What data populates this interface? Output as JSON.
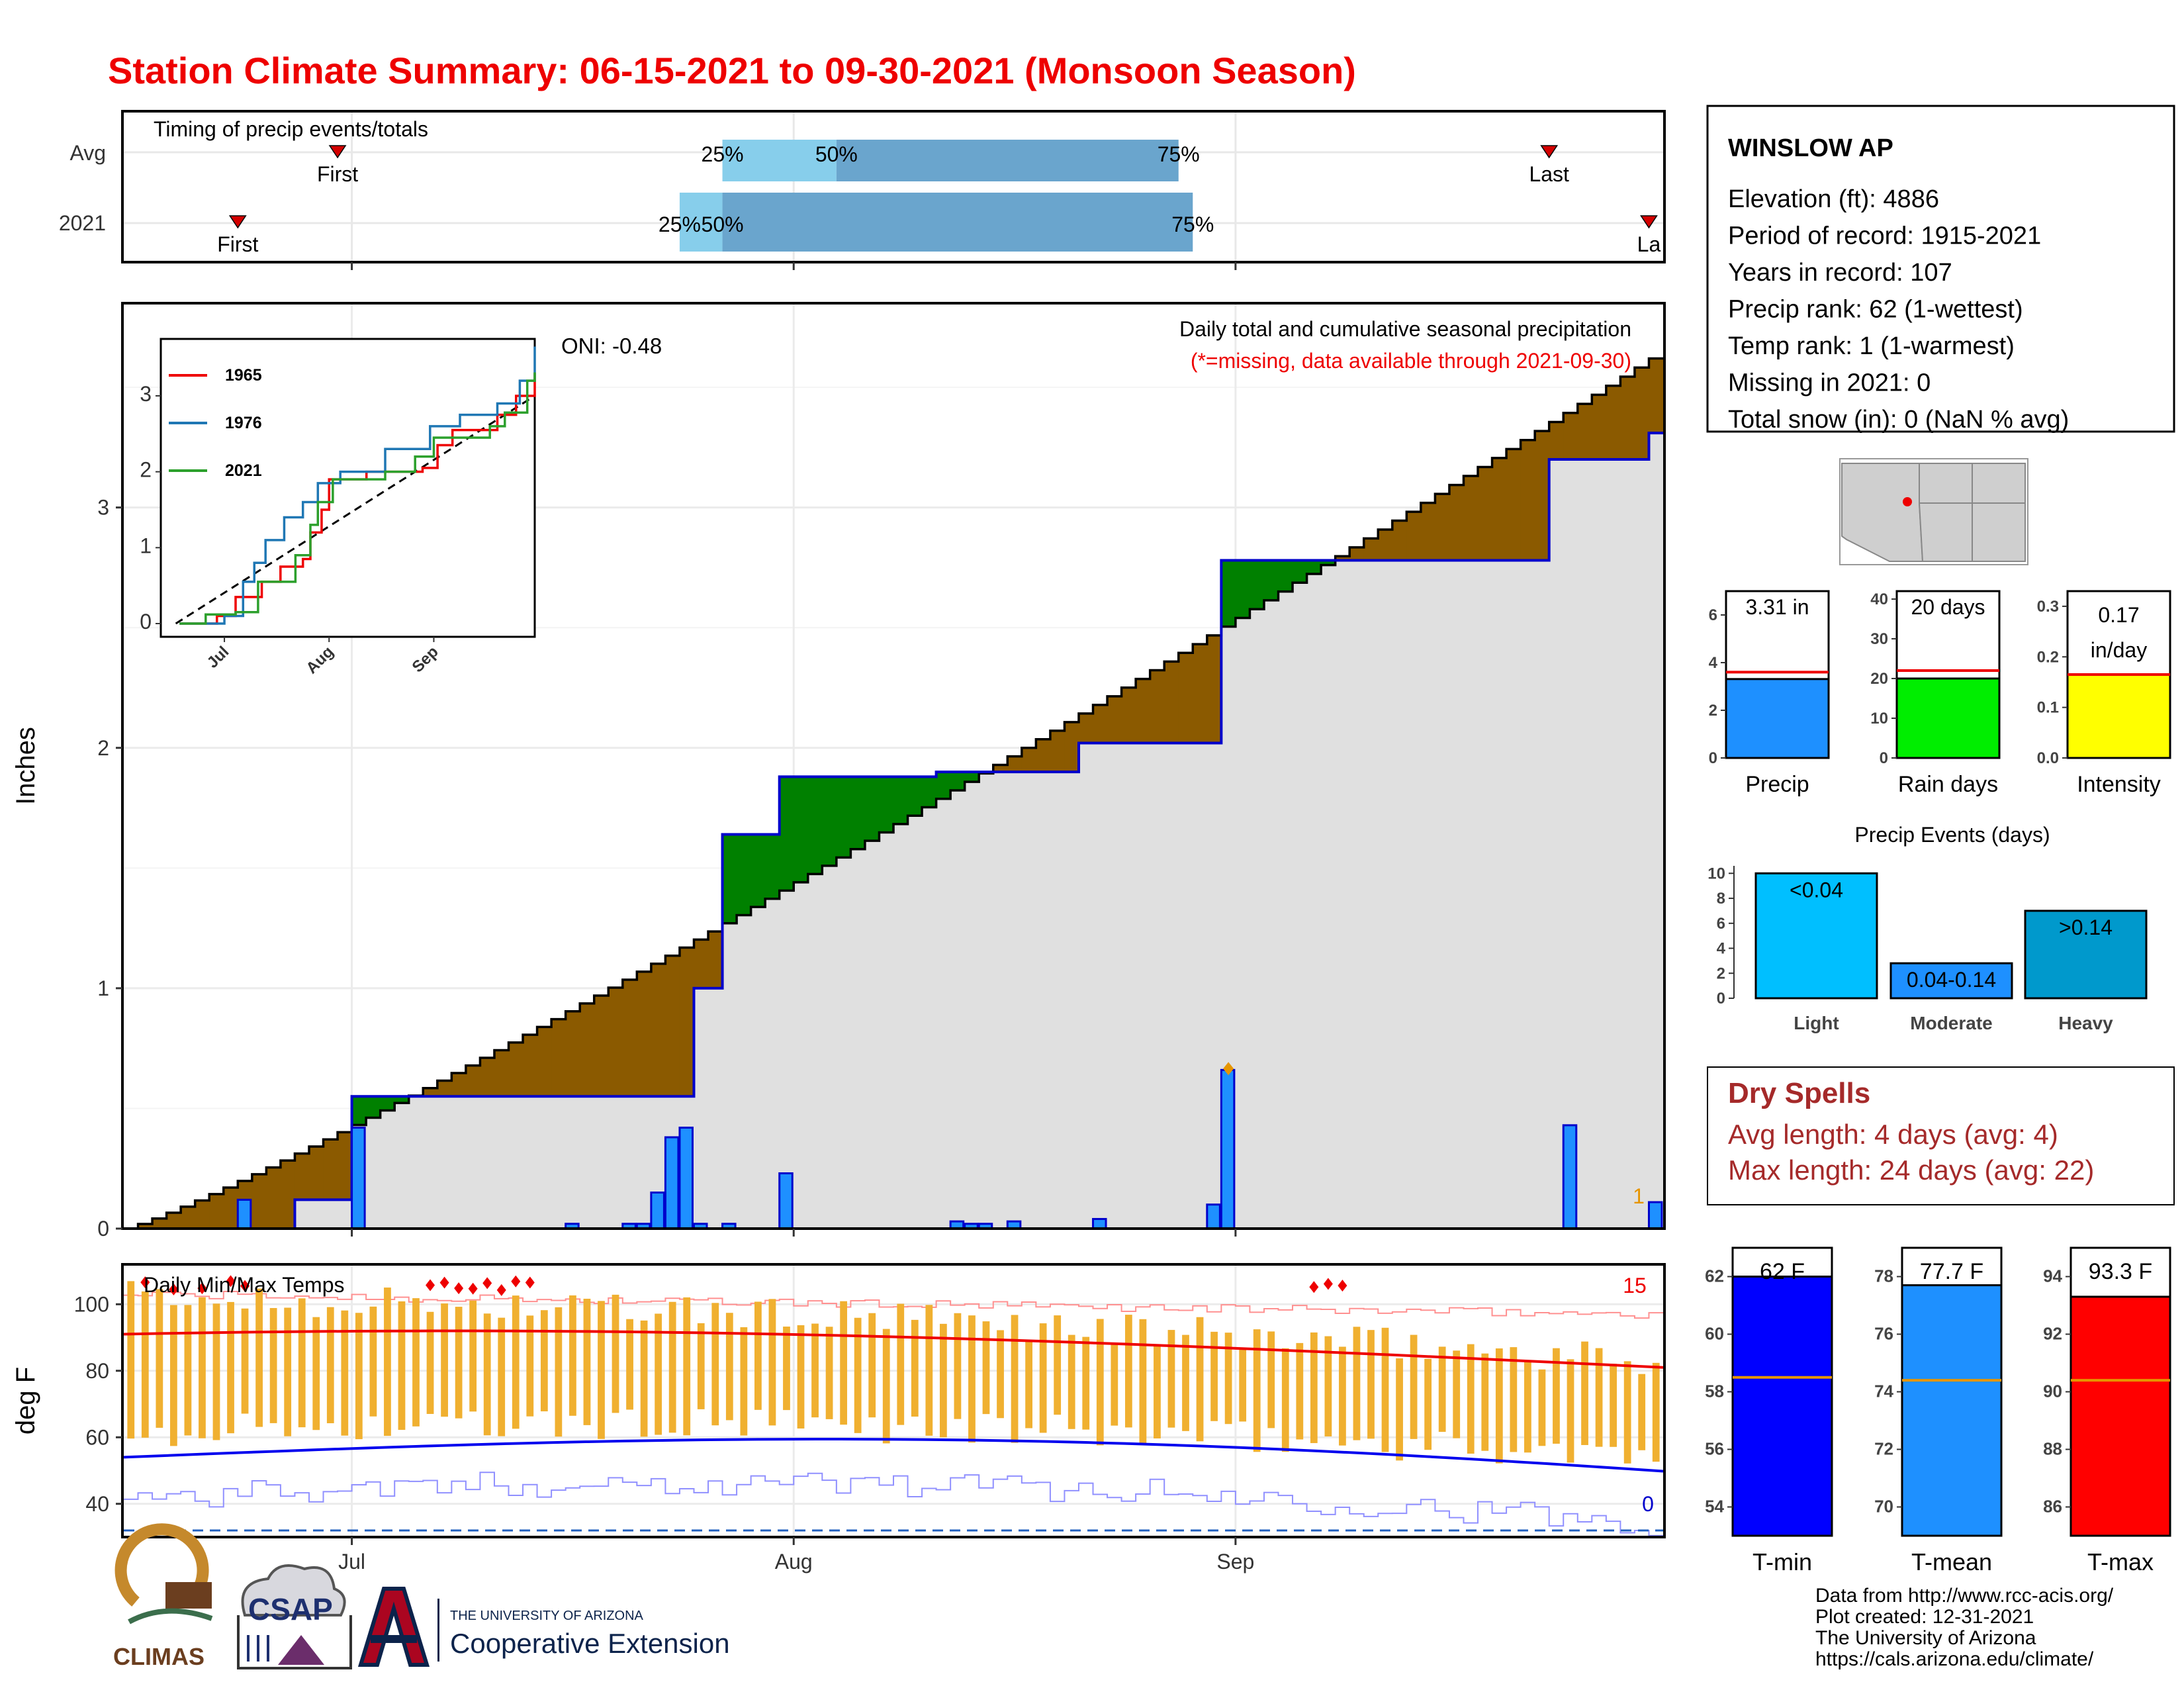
{
  "title": "Station Climate Summary: 06-15-2021 to 09-30-2021 (Monsoon Season)",
  "colors": {
    "title": "#ee0000",
    "above_avg": "#8B5A00",
    "below_avg": "#008000",
    "avg_fill": "#e0e0e0",
    "line_2021": "#0000cc",
    "bar_precip": "#1e90ff",
    "temp_bar": "#f0b030",
    "tmax_avg": "#ee0000",
    "tmin_avg": "#0000ee",
    "light_blue": "#87ceeb",
    "mid_blue": "#6aa5cd"
  },
  "timing": {
    "title": "Timing of precip events/totals",
    "rows": [
      "Avg",
      "2021"
    ],
    "avg": {
      "first_label": "First",
      "first_date": "2021-06-30",
      "last_label": "Last",
      "last_date": "2021-09-23",
      "p25_label": "25%",
      "p25_date": "2021-07-27",
      "p50_label": "50%",
      "p50_date": "2021-08-04",
      "p75_label": "75%",
      "p75_date": "2021-08-28"
    },
    "y2021": {
      "first_label": "First",
      "first_date": "2021-06-23",
      "last_label": "La",
      "last_date": "2021-09-30",
      "p25_label": "25%",
      "p25_date": "2021-07-24",
      "p50_label": "50%",
      "p50_date": "2021-07-27",
      "p75_label": "75%",
      "p75_date": "2021-08-29"
    }
  },
  "precip_panel": {
    "ylabel": "Inches",
    "subtitle": "Daily total and cumulative seasonal precipitation",
    "missing_note": "(*=missing, data available through 2021-09-30)",
    "oni": "ONI: -0.48",
    "corner_count": "1"
  },
  "inset": {
    "legend": [
      "1965",
      "1976",
      "2021"
    ],
    "legend_colors": [
      "#ee0000",
      "#1f77b4",
      "#2ca02c"
    ],
    "x_ticks": [
      "Jul",
      "Aug",
      "Sep"
    ],
    "y_ticks": [
      "0",
      "1",
      "2",
      "3"
    ]
  },
  "temp_panel": {
    "title": "Daily Min/Max Temps",
    "ylabel": "deg F",
    "y_ticks": [
      "40",
      "60",
      "80",
      "100"
    ],
    "record_high_count": "15",
    "record_low_count": "0"
  },
  "x_ticks": [
    "Jul",
    "Aug",
    "Sep"
  ],
  "station": {
    "name": "WINSLOW AP",
    "lines": [
      "Elevation (ft): 4886",
      "Period of record: 1915-2021",
      "Years in record: 107",
      "Precip rank: 62 (1-wettest)",
      "Temp rank: 1 (1-warmest)",
      "Missing in 2021: 0",
      "Total snow (in): 0 (NaN % avg)"
    ]
  },
  "summary_bars": [
    {
      "label": "Precip",
      "value_text": "3.31 in",
      "value": 3.31,
      "avg": 3.6,
      "ymax": 7,
      "ticks": [
        "0",
        "2",
        "4",
        "6"
      ],
      "tick_vals": [
        0,
        2,
        4,
        6
      ],
      "color": "#1e90ff"
    },
    {
      "label": "Rain days",
      "value_text": "20 days",
      "value": 20,
      "avg": 22,
      "ymax": 42,
      "ticks": [
        "0",
        "10",
        "20",
        "30",
        "40"
      ],
      "tick_vals": [
        0,
        10,
        20,
        30,
        40
      ],
      "color": "#00ee00"
    },
    {
      "label": "Intensity",
      "value_text": "0.17 in/day",
      "value_line1": "0.17",
      "value_line2": "in/day",
      "value": 0.165,
      "avg": 0.165,
      "ymax": 0.33,
      "ticks": [
        "0.0",
        "0.1",
        "0.2",
        "0.3"
      ],
      "tick_vals": [
        0,
        0.1,
        0.2,
        0.3
      ],
      "color": "#ffff00"
    }
  ],
  "events": {
    "title": "Precip Events (days)",
    "categories": [
      "Light",
      "Moderate",
      "Heavy"
    ],
    "bar_labels": [
      "<0.04",
      "0.04-0.14",
      ">0.14"
    ],
    "values": [
      10,
      2.8,
      7
    ],
    "colors": [
      "#00bfff",
      "#1e90ff",
      "#0099cc"
    ],
    "ticks": [
      "0",
      "2",
      "4",
      "6",
      "8",
      "10"
    ]
  },
  "dry_spells": {
    "title": "Dry Spells",
    "avg_line": "Avg length: 4 days (avg: 4)",
    "max_line": "Max length: 24 days (avg: 22)"
  },
  "temp_bars": [
    {
      "label": "T-min",
      "value_text": "62 F",
      "value": 62.0,
      "avg": 58.5,
      "ymin": 53,
      "ymax": 63,
      "ticks": [
        "54",
        "56",
        "58",
        "60",
        "62"
      ],
      "tick_vals": [
        54,
        56,
        58,
        60,
        62
      ],
      "color": "#0000ff"
    },
    {
      "label": "T-mean",
      "value_text": "77.7 F",
      "value": 77.7,
      "avg": 74.4,
      "ymin": 69,
      "ymax": 79,
      "ticks": [
        "70",
        "72",
        "74",
        "76",
        "78"
      ],
      "tick_vals": [
        70,
        72,
        74,
        76,
        78
      ],
      "color": "#1e90ff"
    },
    {
      "label": "T-max",
      "value_text": "93.3 F",
      "value": 93.3,
      "avg": 90.4,
      "ymin": 85,
      "ymax": 95,
      "ticks": [
        "86",
        "88",
        "90",
        "92",
        "94"
      ],
      "tick_vals": [
        86,
        88,
        90,
        92,
        94
      ],
      "color": "#ff0000"
    }
  ],
  "footer": {
    "lines": [
      "Data from http://www.rcc-acis.org/",
      "Plot created: 12-31-2021",
      "The University of Arizona",
      "https://cals.arizona.edu/climate/"
    ],
    "logo1": "CLIMAS",
    "logo2": "CSAP",
    "logo3_small": "THE UNIVERSITY OF ARIZONA",
    "logo3_big": "Cooperative Extension"
  },
  "chart_data": {
    "type": "area",
    "title": "Station Climate Summary: 06-15-2021 to 09-30-2021 (Monsoon Season)",
    "ylabel": "Inches",
    "x_range": [
      "2021-06-15",
      "2021-09-30"
    ],
    "ylim": [
      0,
      3.85
    ],
    "series": [
      {
        "name": "2021 cumulative",
        "x": [
          "2021-06-15",
          "2021-06-27",
          "2021-07-01",
          "2021-07-22",
          "2021-07-25",
          "2021-07-27",
          "2021-07-31",
          "2021-08-11",
          "2021-08-21",
          "2021-08-30",
          "2021-08-31",
          "2021-09-23",
          "2021-09-30"
        ],
        "y": [
          0.0,
          0.12,
          0.55,
          0.55,
          1.0,
          1.64,
          1.88,
          1.9,
          2.02,
          2.02,
          2.78,
          3.2,
          3.31
        ]
      },
      {
        "name": "daily precip",
        "x": [
          "2021-06-23",
          "2021-07-01",
          "2021-07-16",
          "2021-07-20",
          "2021-07-21",
          "2021-07-22",
          "2021-07-23",
          "2021-07-24",
          "2021-07-25",
          "2021-07-27",
          "2021-07-31",
          "2021-08-12",
          "2021-08-13",
          "2021-08-14",
          "2021-08-16",
          "2021-08-22",
          "2021-08-30",
          "2021-08-31",
          "2021-09-24",
          "2021-09-30"
        ],
        "y": [
          0.12,
          0.42,
          0.02,
          0.02,
          0.02,
          0.15,
          0.38,
          0.42,
          0.02,
          0.02,
          0.23,
          0.03,
          0.02,
          0.02,
          0.03,
          0.04,
          0.1,
          0.66,
          0.43,
          0.11
        ]
      }
    ],
    "temp": {
      "ylim": [
        30,
        112
      ],
      "tmax_avg_start": 91,
      "tmax_avg_end": 81,
      "tmin_avg_start": 54,
      "tmin_avg_end": 47,
      "freezing_line": 32
    },
    "grid": true
  }
}
